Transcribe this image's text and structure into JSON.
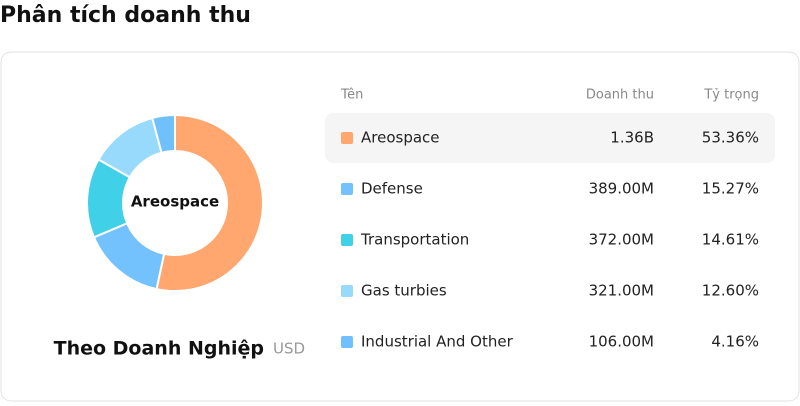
{
  "header": {
    "title": "Phân tích doanh thu"
  },
  "chart_data": {
    "type": "pie",
    "subtitle": "Theo Doanh Nghiệp",
    "unit": "USD",
    "categories": [
      "Areospace",
      "Defense",
      "Transportation",
      "Gas turbies",
      "Industrial And Other"
    ],
    "values": [
      53.36,
      15.27,
      14.61,
      12.6,
      4.16
    ],
    "value_labels": [
      "53.36%",
      "15.27%",
      "14.61%",
      "12.60%",
      "4.16%"
    ],
    "colors": [
      "#ffa76f",
      "#74c2fd",
      "#40d0e8",
      "#98dafb",
      "#70c0fb"
    ]
  },
  "table": {
    "columns": [
      "Tên",
      "Doanh thu",
      "Tỷ trọng"
    ],
    "revenue": [
      "1.36B",
      "389.00M",
      "372.00M",
      "321.00M",
      "106.00M"
    ]
  }
}
